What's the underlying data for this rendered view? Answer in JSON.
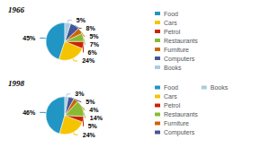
{
  "chart_data": [
    {
      "type": "pie",
      "title": "1966",
      "categories": [
        "Food",
        "Cars",
        "Petrol",
        "Restaurants",
        "Furniture",
        "Computers",
        "Books"
      ],
      "values": [
        45,
        24,
        6,
        7,
        5,
        8,
        5
      ],
      "value_labels": [
        "45%",
        "24%",
        "6%",
        "7%",
        "5%",
        "8%",
        "5%"
      ],
      "colors": [
        "#2196c4",
        "#f5c400",
        "#cc2200",
        "#88bb33",
        "#cc6600",
        "#445599",
        "#aaccdd"
      ],
      "data_labels": true,
      "legend": "right"
    },
    {
      "type": "pie",
      "title": "1998",
      "categories": [
        "Food",
        "Cars",
        "Petrol",
        "Restaurants",
        "Furniture",
        "Computers",
        "Books"
      ],
      "values": [
        46,
        24,
        5,
        14,
        4,
        5,
        3
      ],
      "value_labels": [
        "46%",
        "24%",
        "5%",
        "14%",
        "4%",
        "5%",
        "3%"
      ],
      "colors": [
        "#2196c4",
        "#f5c400",
        "#cc2200",
        "#88bb33",
        "#cc6600",
        "#445599",
        "#aaccdd"
      ],
      "data_labels": true,
      "legend": "right"
    }
  ]
}
